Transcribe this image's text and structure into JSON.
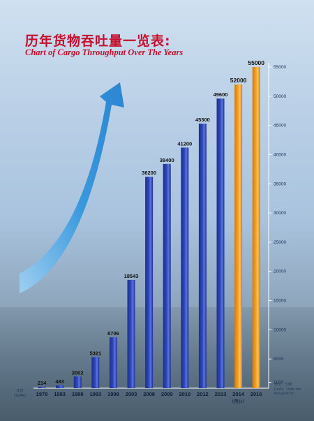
{
  "header": {
    "title_cn": "历年货物吞吐量一览表:",
    "title_en": "Chart of Cargo Throughput Over The Years"
  },
  "axis_notes": {
    "x_unit_cn": "年份",
    "x_unit_en": "(YEAR)",
    "y_unit_cn": "单位：万吨",
    "y_unit_en": "(Unit)：Units: ten thousand ton",
    "forecast_note": "(预计)"
  },
  "colors": {
    "actual_bar": "#2e47b8",
    "forecast_bar": "#f4a021",
    "label": "#111111",
    "axis": "#ffffff",
    "arrow": "#1f7fd0"
  },
  "chart_data": {
    "type": "bar",
    "title": "Chart of Cargo Throughput Over The Years",
    "categories": [
      "1978",
      "1983",
      "1988",
      "1993",
      "1998",
      "2003",
      "2008",
      "2009",
      "2010",
      "2012",
      "2013",
      "2014",
      "2016"
    ],
    "series": [
      {
        "values": [
          214,
          483,
          2002,
          5321,
          8706,
          18543,
          36200,
          38400,
          41200,
          45300,
          49600,
          52000,
          55000
        ]
      }
    ],
    "forecast_categories": [
      "2014",
      "2016"
    ],
    "xlabel": "年份 (YEAR)",
    "ylabel": "单位：万吨",
    "ylim": [
      0,
      55000
    ],
    "yticks": [
      1000,
      5000,
      10000,
      15000,
      20000,
      25000,
      30000,
      35000,
      40000,
      45000,
      50000,
      55000
    ],
    "grid": false
  }
}
